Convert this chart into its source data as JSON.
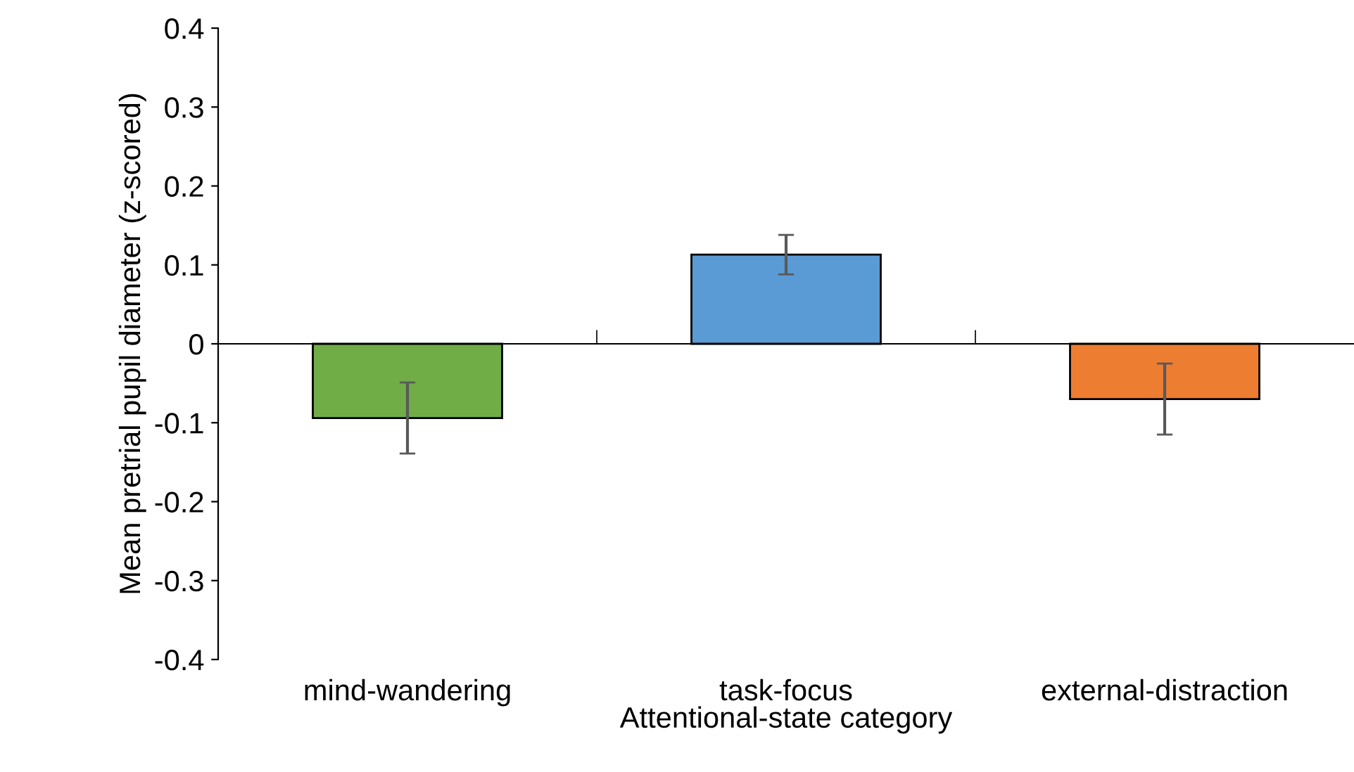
{
  "chart_data": {
    "type": "bar",
    "xlabel": "Attentional-state category",
    "ylabel": "Mean pretrial pupil diameter (z-scored)",
    "categories": [
      "mind-wandering",
      "task-focus",
      "external-distraction"
    ],
    "values": [
      -0.094,
      0.113,
      -0.07
    ],
    "errors": [
      0.045,
      0.025,
      0.045
    ],
    "colors": [
      "#70ad47",
      "#5b9bd5",
      "#ed7d31"
    ],
    "ylim": [
      -0.4,
      0.4
    ],
    "yticks": [
      -0.4,
      -0.3,
      -0.2,
      -0.1,
      0,
      0.1,
      0.2,
      0.3,
      0.4
    ],
    "legend": false
  }
}
